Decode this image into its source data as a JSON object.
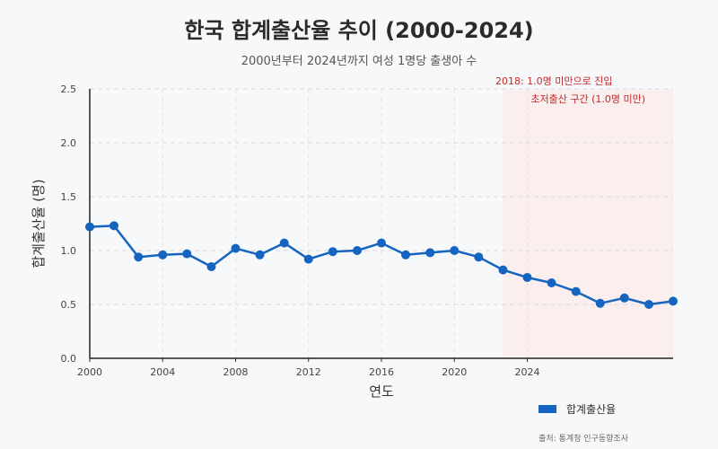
{
  "chart_data": {
    "type": "line",
    "title": "한국 합계출산율 추이 (2000-2024)",
    "subtitle": "2000년부터 2024년까지 여성 1명당 출생아 수",
    "xlabel": "연도",
    "ylabel": "합계출산율 (명)",
    "ylim": [
      0,
      2.5
    ],
    "y_ticks": [
      "0.0",
      "0.5",
      "1.0",
      "1.5",
      "2.0",
      "2.5"
    ],
    "x_tick_labels": [
      {
        "label": "2000",
        "at": 2000
      },
      {
        "label": "2004",
        "at": 2004
      },
      {
        "label": "2008",
        "at": 2008
      },
      {
        "label": "2012",
        "at": 2012
      },
      {
        "label": "2016",
        "at": 2016
      },
      {
        "label": "2020",
        "at": 2020
      },
      {
        "label": "2024",
        "at": 2024
      }
    ],
    "xlim": [
      2000,
      2032
    ],
    "grid": true,
    "series": [
      {
        "name": "합계출산율",
        "color": "#1565c0",
        "x": [
          2000,
          2001.33,
          2002.67,
          2004,
          2005.33,
          2006.67,
          2008,
          2009.33,
          2010.67,
          2012,
          2013.33,
          2014.67,
          2016,
          2017.33,
          2018.67,
          2020,
          2021.33,
          2022.67,
          2024,
          2025.33,
          2026.67,
          2028,
          2029.33,
          2030.67,
          2032
        ],
        "values": [
          1.22,
          1.23,
          0.94,
          0.96,
          0.97,
          0.85,
          1.02,
          0.96,
          1.07,
          0.92,
          0.99,
          1.0,
          1.07,
          0.96,
          0.98,
          1.0,
          0.94,
          0.82,
          0.75,
          0.7,
          0.62,
          0.51,
          0.56,
          0.5,
          0.53
        ]
      }
    ],
    "shaded_region": {
      "x_start": 2022.67,
      "x_end": 2032,
      "color": "#fbeeee",
      "label": "초저출산 구간 (1.0명 미만)"
    },
    "annotations": [
      {
        "text": "2018: 1.0명 미만으로 진입"
      }
    ],
    "legend_position": "bottom-right"
  },
  "source": "출처: 통계청 인구동향조사"
}
